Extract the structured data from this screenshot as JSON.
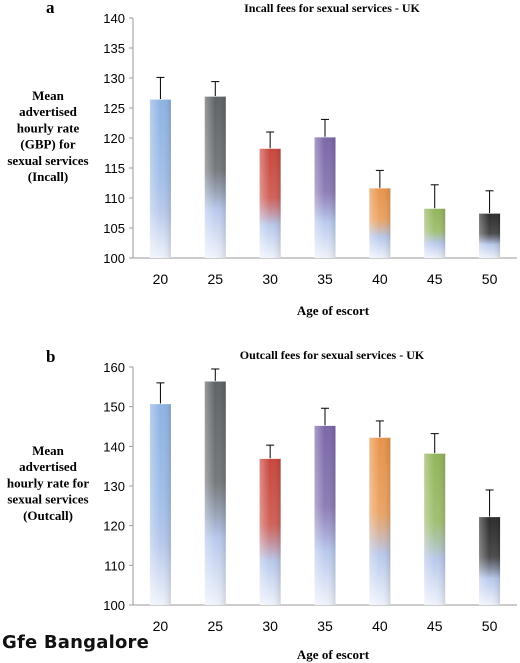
{
  "watermark": "Gfe Bangalore",
  "chart_data": [
    {
      "panel_label": "a",
      "type": "bar",
      "title": "Incall fees for sexual services - UK",
      "xlabel": "Age of escort",
      "ylabel": "Mean advertised hourly rate (GBP) for sexual services (Incall)",
      "ylabel_lines": [
        "Mean",
        "advertised",
        "hourly rate",
        "(GBP) for",
        "sexual services",
        "(Incall)"
      ],
      "categories": [
        "20",
        "25",
        "30",
        "35",
        "40",
        "45",
        "50"
      ],
      "values": [
        126.5,
        127,
        118.3,
        120.2,
        111.7,
        108.3,
        107.5
      ],
      "error_upper": [
        130.1,
        129.4,
        121,
        123.1,
        114.6,
        112.2,
        111.2
      ],
      "ylim": [
        100,
        140
      ],
      "yticks": [
        "100",
        "105",
        "110",
        "115",
        "120",
        "125",
        "130",
        "135",
        "140"
      ],
      "colors": [
        "#8fb3e3",
        "#5e6266",
        "#c8463c",
        "#7a66a8",
        "#e8944a",
        "#92b55a",
        "#2a2a2a"
      ]
    },
    {
      "panel_label": "b",
      "type": "bar",
      "title": "Outcall fees for sexual services - UK",
      "xlabel": "Age of escort",
      "ylabel": "Mean advertised hourly rate for sexual services (Outcall)",
      "ylabel_lines": [
        "Mean",
        "advertised",
        "hourly rate for",
        "sexual services",
        "(Outcall)"
      ],
      "categories": [
        "20",
        "25",
        "30",
        "35",
        "40",
        "45",
        "50"
      ],
      "values": [
        150.8,
        156.5,
        137,
        145.3,
        142.3,
        138.3,
        122.3
      ],
      "error_upper": [
        156,
        159.5,
        140.3,
        149.6,
        146.4,
        143.2,
        129
      ],
      "ylim": [
        100,
        160
      ],
      "yticks": [
        "100",
        "110",
        "120",
        "130",
        "140",
        "150",
        "160"
      ],
      "colors": [
        "#8fb3e3",
        "#5e6266",
        "#c8463c",
        "#7a66a8",
        "#e8944a",
        "#92b55a",
        "#2a2a2a"
      ]
    }
  ]
}
